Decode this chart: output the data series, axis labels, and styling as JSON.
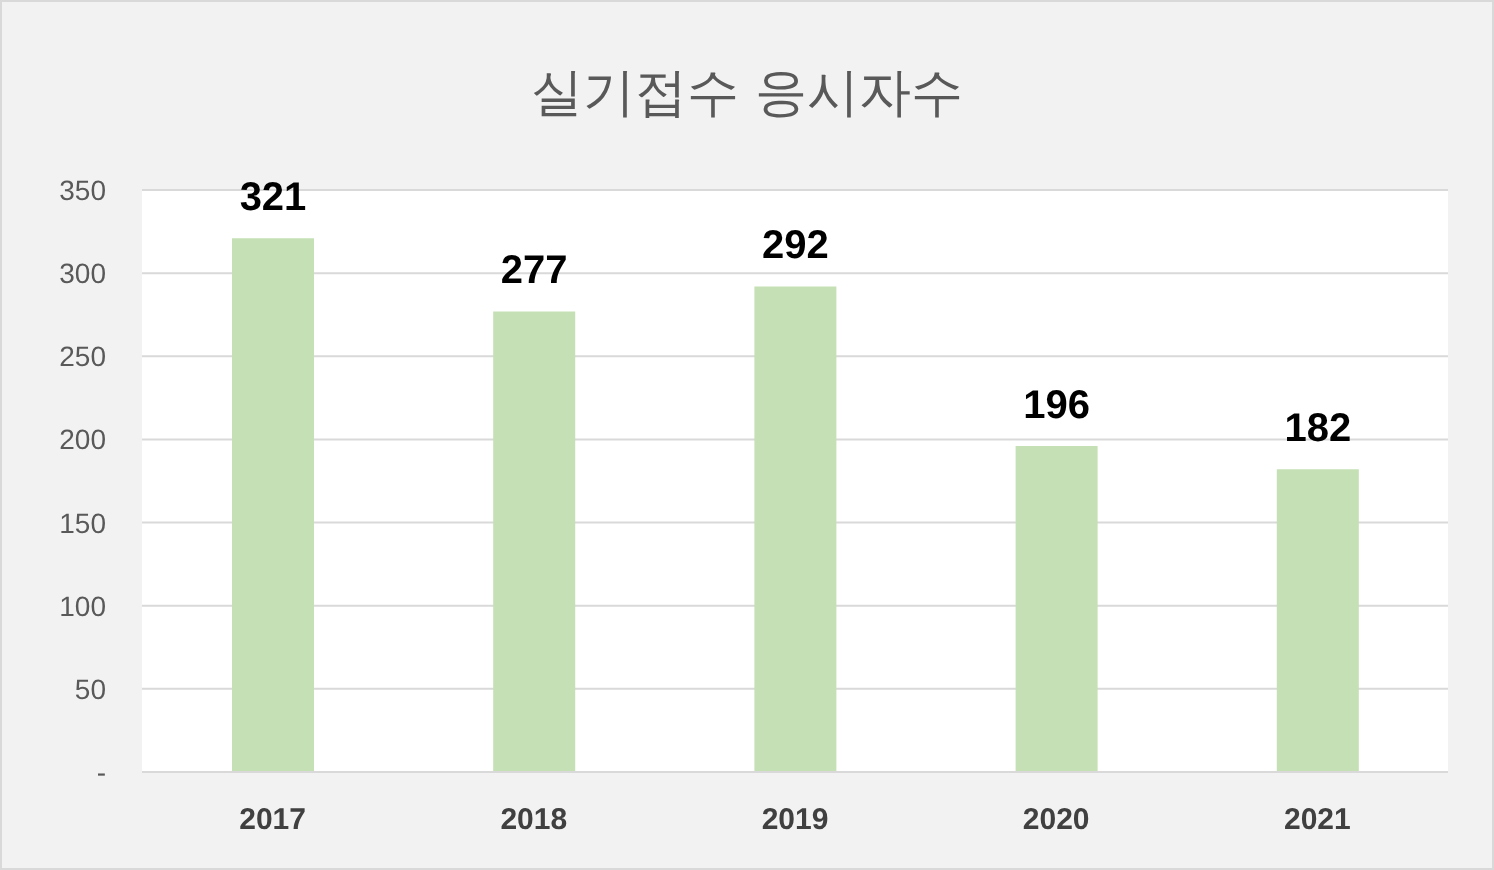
{
  "chart_data": {
    "type": "bar",
    "title": "실기접수 응시자수",
    "categories": [
      "2017",
      "2018",
      "2019",
      "2020",
      "2021"
    ],
    "values": [
      321,
      277,
      292,
      196,
      182
    ],
    "color": "#c5e0b4",
    "ylim": [
      0,
      350
    ],
    "yticks": [
      {
        "value": 0,
        "label": "-"
      },
      50,
      100,
      150,
      200,
      250,
      300,
      350
    ],
    "grid": "y",
    "data_labels": true
  }
}
